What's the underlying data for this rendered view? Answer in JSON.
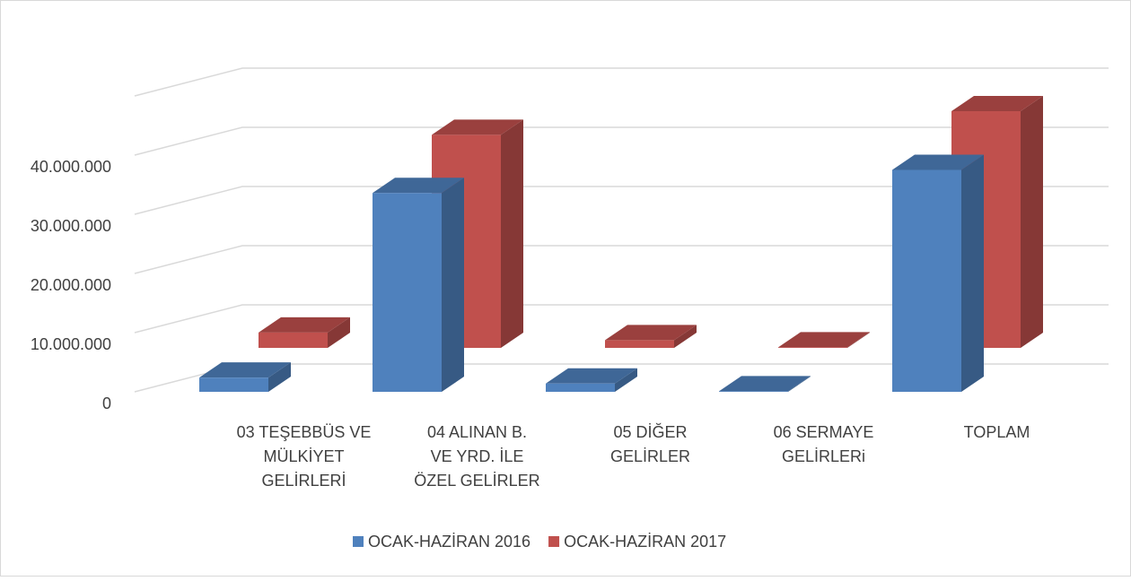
{
  "chart_data": {
    "type": "bar3d",
    "categories": [
      "03 TEŞEBBÜS VE MÜLKİYET GELİRLERİ",
      "04 ALINAN B. VE YRD.  İLE ÖZEL GELİRLER",
      "05 DİĞER GELİRLER",
      "06 SERMAYE GELİRLERi",
      "TOPLAM"
    ],
    "series": [
      {
        "name": "OCAK-HAZİRAN 2016",
        "color": "#4f81bd",
        "values": [
          2400000,
          33600000,
          1400000,
          100000,
          37500000
        ]
      },
      {
        "name": "OCAK-HAZİRAN 2017",
        "color": "#c0504d",
        "values": [
          2600000,
          36000000,
          1300000,
          100000,
          40000000
        ]
      }
    ],
    "ylim": [
      0,
      50000000
    ],
    "yticks": [
      0,
      {
        "value": 10000000,
        "label": "10.000.000"
      },
      {
        "value": 20000000,
        "label": "20.000.000"
      },
      {
        "value": 30000000,
        "label": "30.000.000"
      },
      {
        "value": 40000000,
        "label": "40.000.000"
      }
    ],
    "grid": true,
    "legend": "bottom"
  }
}
